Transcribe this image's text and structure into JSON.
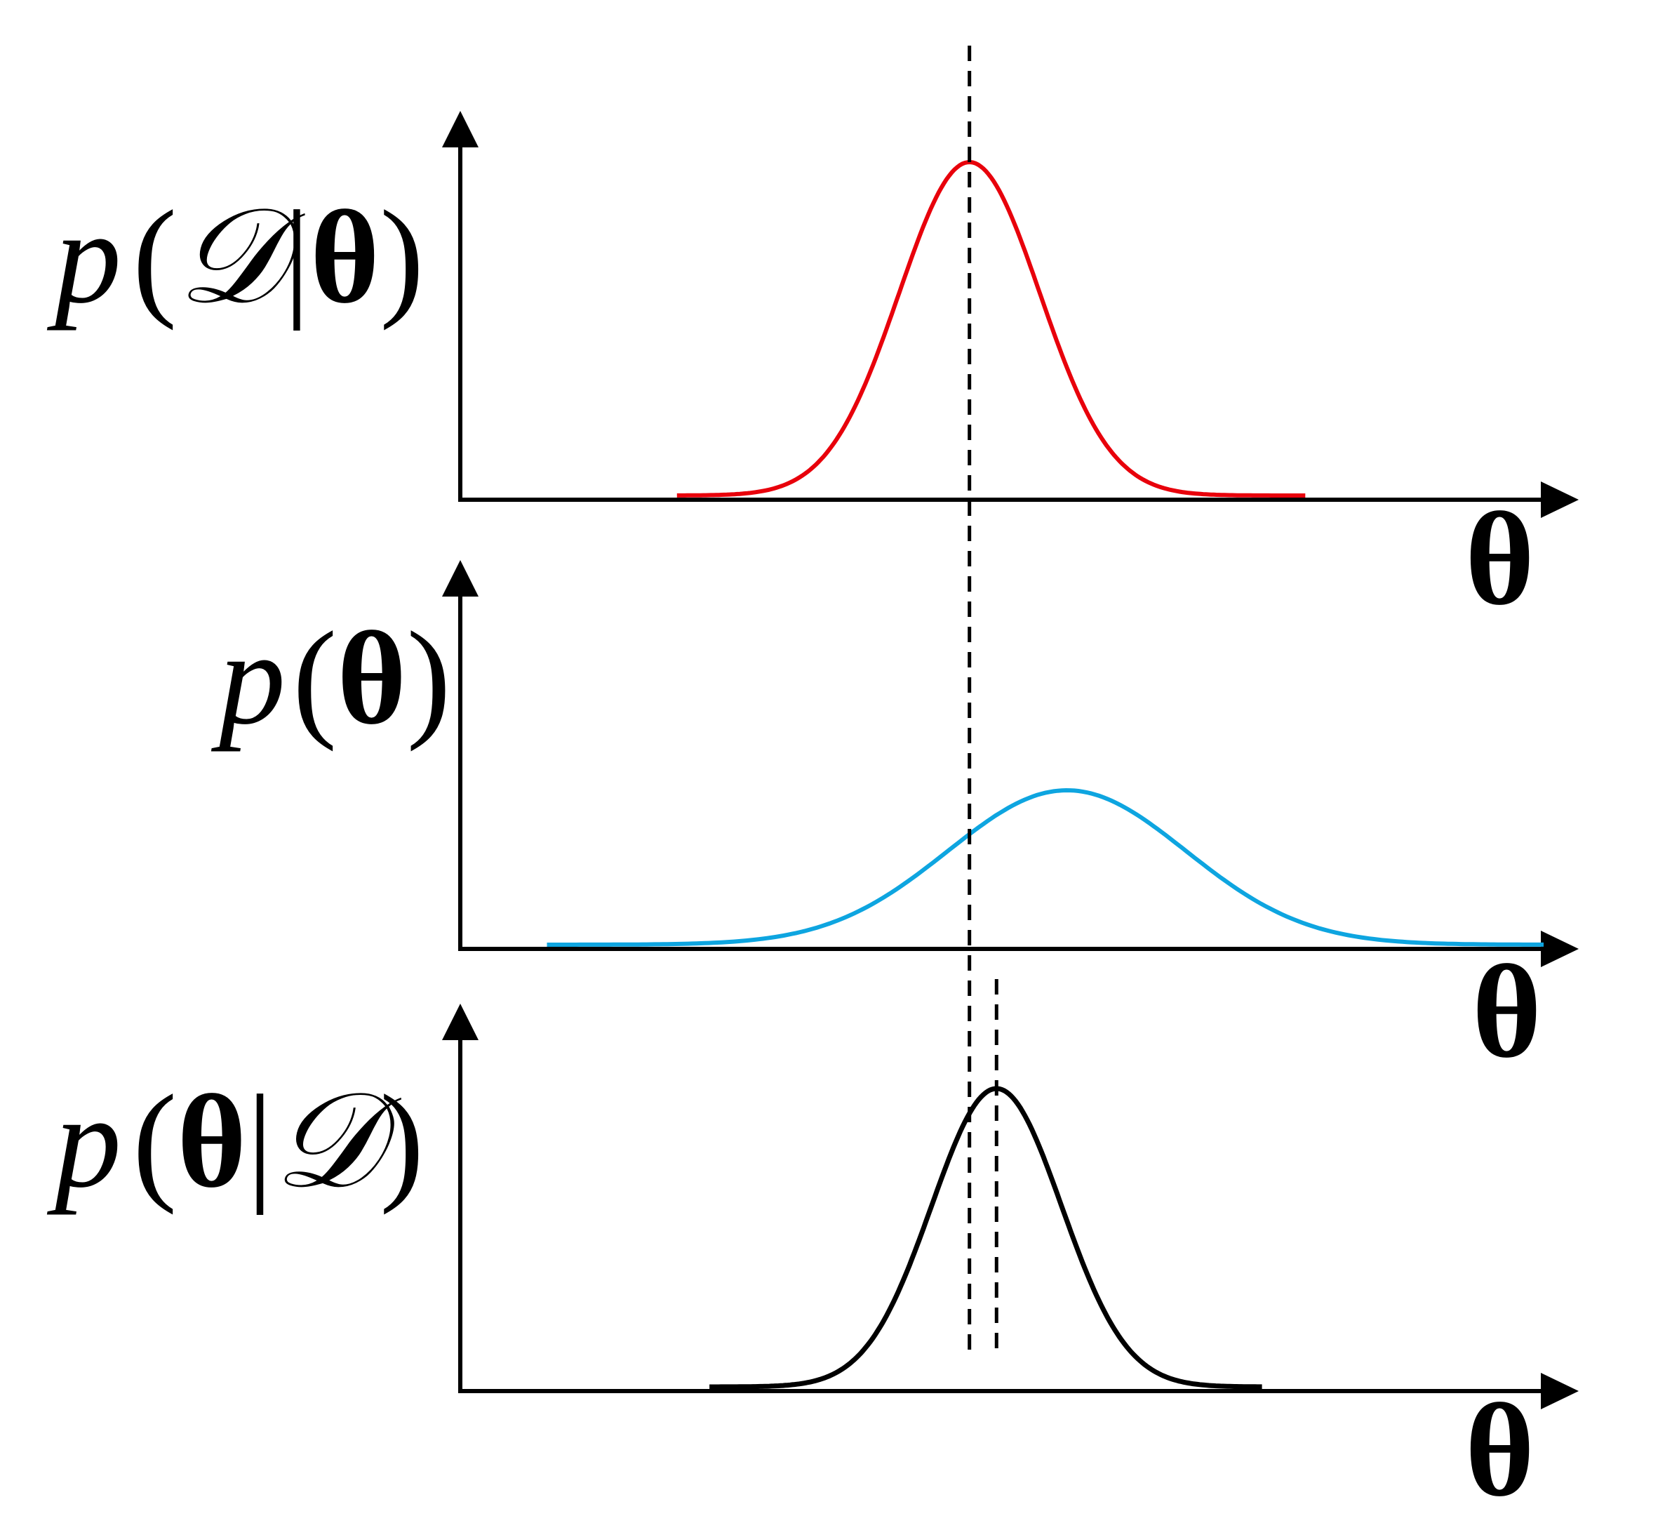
{
  "panels": [
    {
      "id": "likelihood",
      "y_label": {
        "p": "p",
        "open": "(",
        "arg1": "𝒟",
        "bar": "|",
        "arg2": "θ",
        "close": ")"
      },
      "x_label": "θ",
      "curve": {
        "color": "#e8000b",
        "mean": 0.47,
        "sd": 0.065,
        "peak": 0.95,
        "from": 0.2,
        "to": 0.78
      }
    },
    {
      "id": "prior",
      "y_label": {
        "p": "p",
        "open": "(",
        "arg1": "θ",
        "bar": "",
        "arg2": "",
        "close": ")"
      },
      "x_label": "θ",
      "curve": {
        "color": "#0ea5e0",
        "mean": 0.56,
        "sd": 0.11,
        "peak": 0.44,
        "from": 0.08,
        "to": 1.0
      }
    },
    {
      "id": "posterior",
      "y_label": {
        "p": "p",
        "open": "(",
        "arg1": "θ",
        "bar": "|",
        "arg2": "𝒟",
        "close": ")"
      },
      "x_label": "θ",
      "curve": {
        "color": "#000000",
        "mean": 0.495,
        "sd": 0.06,
        "peak": 0.85,
        "from": 0.23,
        "to": 0.74
      }
    }
  ],
  "reference_lines": {
    "likelihood_mode": 0.47,
    "posterior_mode": 0.495
  }
}
